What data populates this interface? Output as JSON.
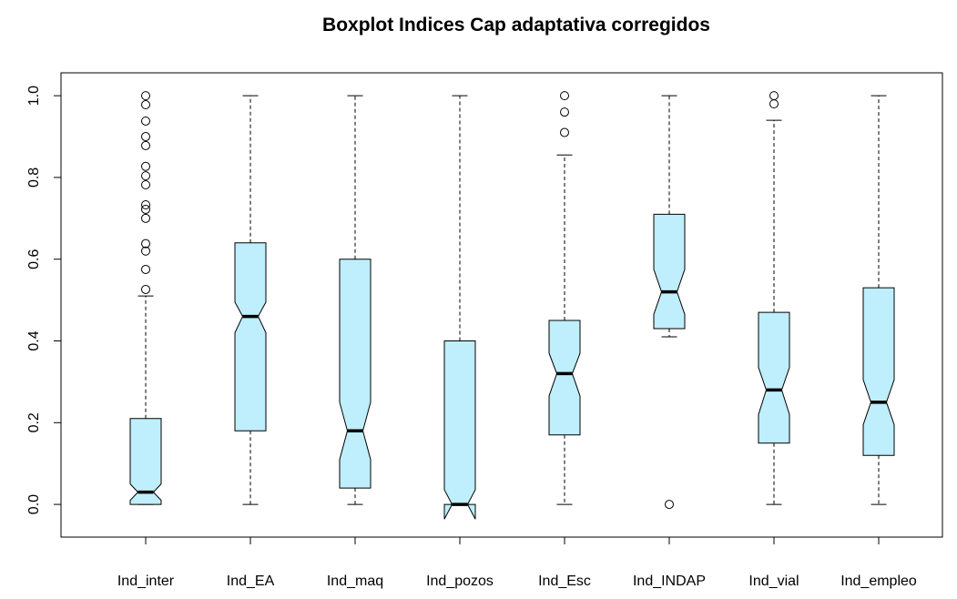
{
  "chart_data": {
    "type": "boxplot",
    "title": "Boxplot Indices Cap adaptativa corregidos",
    "categories": [
      "Ind_inter",
      "Ind_EA",
      "Ind_maq",
      "Ind_pozos",
      "Ind_Esc",
      "Ind_INDAP",
      "Ind_vial",
      "Ind_empleo"
    ],
    "color": "#bfeefc",
    "ylim": [
      -0.08,
      1.056
    ],
    "yticks": [
      {
        "value": 0,
        "label": "0.0"
      },
      {
        "value": 0.2,
        "label": "0.2"
      },
      {
        "value": 0.4,
        "label": "0.4"
      },
      {
        "value": 0.6,
        "label": "0.6"
      },
      {
        "value": 0.8,
        "label": "0.8"
      },
      {
        "value": 1,
        "label": "1.0"
      }
    ],
    "boxes": [
      {
        "whisker_low": 0,
        "q1": 0,
        "median": 0.03,
        "q3": 0.21,
        "whisker_high": 0.51,
        "notch_low": 0.01,
        "notch_high": 0.05,
        "outliers": [
          1.0,
          0.978,
          0.938,
          0.9,
          0.878,
          0.827,
          0.804,
          0.782,
          0.733,
          0.722,
          0.7,
          0.638,
          0.62,
          0.575,
          0.526
        ]
      },
      {
        "whisker_low": 0,
        "q1": 0.18,
        "median": 0.46,
        "q3": 0.64,
        "whisker_high": 1.0,
        "notch_low": 0.42,
        "notch_high": 0.495,
        "outliers": []
      },
      {
        "whisker_low": 0,
        "q1": 0.04,
        "median": 0.18,
        "q3": 0.6,
        "whisker_high": 1.0,
        "notch_low": 0.11,
        "notch_high": 0.25,
        "outliers": []
      },
      {
        "whisker_low": 0,
        "q1": 0,
        "median": 0,
        "q3": 0.4,
        "whisker_high": 1.0,
        "notch_low": -0.036,
        "notch_high": 0.036,
        "outliers": []
      },
      {
        "whisker_low": 0,
        "q1": 0.17,
        "median": 0.32,
        "q3": 0.45,
        "whisker_high": 0.855,
        "notch_low": 0.265,
        "notch_high": 0.37,
        "outliers": [
          1.0,
          0.96,
          0.91
        ]
      },
      {
        "whisker_low": 0.41,
        "q1": 0.43,
        "median": 0.52,
        "q3": 0.71,
        "whisker_high": 1.0,
        "notch_low": 0.465,
        "notch_high": 0.575,
        "outliers": [
          0
        ]
      },
      {
        "whisker_low": 0,
        "q1": 0.15,
        "median": 0.28,
        "q3": 0.47,
        "whisker_high": 0.94,
        "notch_low": 0.22,
        "notch_high": 0.335,
        "outliers": [
          1.0,
          0.98
        ]
      },
      {
        "whisker_low": 0,
        "q1": 0.12,
        "median": 0.25,
        "q3": 0.53,
        "whisker_high": 1.0,
        "notch_low": 0.195,
        "notch_high": 0.305,
        "outliers": []
      }
    ]
  }
}
